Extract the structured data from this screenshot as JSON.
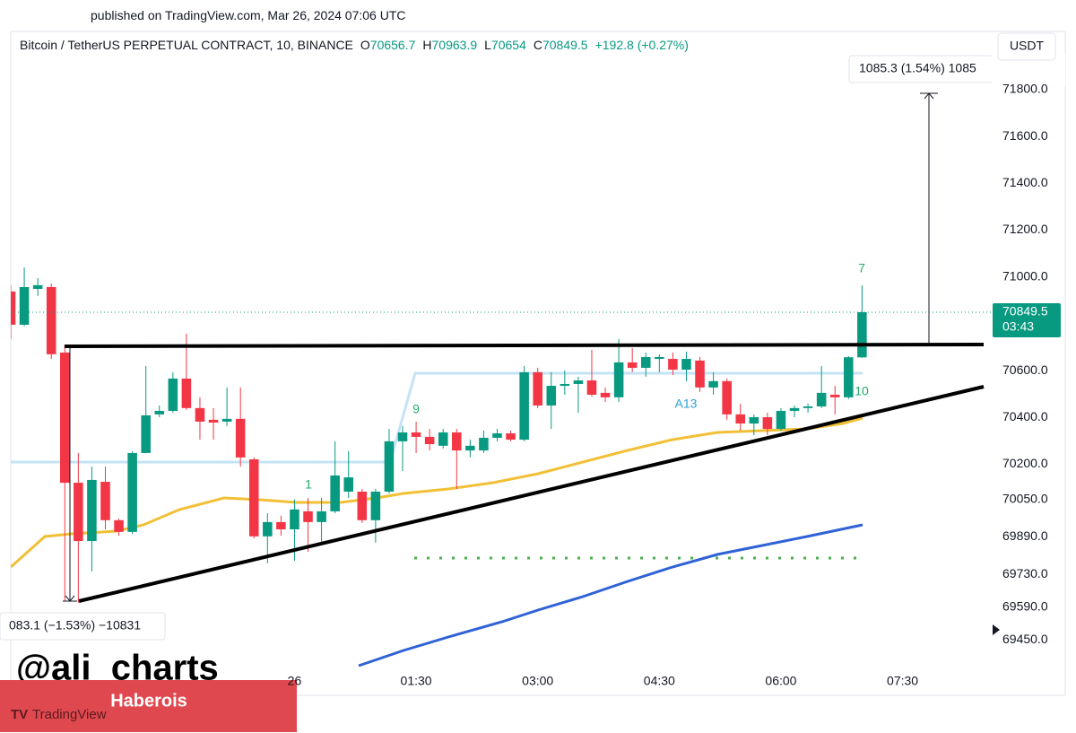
{
  "header": {
    "published": "published on TradingView.com, Mar 26, 2024 07:06 UTC",
    "symbol": "Bitcoin / TetherUS PERPETUAL CONTRACT, 10, BINANCE",
    "ohlc_labels": [
      "O",
      "H",
      "L",
      "C"
    ],
    "change": "+192.8 (+0.27%)"
  },
  "chart_data": {
    "type": "candlestick",
    "x": [
      -210,
      -200,
      -190,
      -180,
      -170,
      -160,
      -150,
      -140,
      -130,
      -120,
      -110,
      -100,
      -90,
      -80,
      -70,
      -60,
      -50,
      -40,
      -30,
      -20,
      -10,
      0,
      10,
      20,
      30,
      40,
      50,
      60,
      70,
      80,
      90,
      100,
      110,
      120,
      130,
      140,
      150,
      160,
      170,
      180,
      190,
      200,
      210,
      220,
      230,
      240,
      250,
      260,
      270,
      280,
      290,
      300,
      310,
      320,
      330,
      340,
      350,
      360,
      370,
      380,
      390,
      400,
      410,
      420
    ],
    "open": [
      70938,
      70796,
      70949,
      70957,
      70677,
      70121,
      69872,
      70125,
      69961,
      69911,
      70248,
      70413,
      70428,
      70566,
      70440,
      70390,
      70382,
      70394,
      70221,
      69892,
      69953,
      69922,
      69999,
      69953,
      69999,
      70083,
      70083,
      69961,
      70083,
      70298,
      70336,
      70317,
      70279,
      70336,
      70259,
      70259,
      70313,
      70332,
      70305,
      70593,
      70451,
      70535,
      70543,
      70558,
      70505,
      70486,
      70635,
      70612,
      70650,
      70650,
      70604,
      70643,
      70528,
      70555,
      70413,
      70374,
      70401,
      70351,
      70428,
      70440,
      70447,
      70497,
      70486,
      70656.7
    ],
    "high": [
      70965,
      71041,
      70995,
      70972,
      70708,
      70248,
      70190,
      70190,
      69968,
      70256,
      70620,
      70451,
      70593,
      70758,
      70486,
      70440,
      70528,
      70528,
      70229,
      69991,
      69980,
      70049,
      70056,
      70056,
      70298,
      70256,
      70095,
      70095,
      70351,
      70363,
      70382,
      70351,
      70351,
      70351,
      70305,
      70344,
      70351,
      70344,
      70620,
      70612,
      70593,
      70601,
      70574,
      70689,
      70528,
      70735,
      70696,
      70677,
      70670,
      70677,
      70681,
      70658,
      70593,
      70566,
      70459,
      70413,
      70420,
      70440,
      70451,
      70459,
      70620,
      70535,
      70662,
      70963.9
    ],
    "low": [
      70735,
      70790,
      70919,
      70650,
      69616,
      69608,
      69742,
      69922,
      69895,
      69903,
      70248,
      70401,
      70420,
      70432,
      70305,
      70305,
      70363,
      70190,
      69884,
      69777,
      69895,
      69788,
      69826,
      69865,
      69991,
      70056,
      69949,
      69865,
      70075,
      70171,
      70248,
      70259,
      70267,
      70095,
      70229,
      70248,
      70298,
      70298,
      70298,
      70440,
      70351,
      70497,
      70420,
      70489,
      70466,
      70466,
      70593,
      70574,
      70593,
      70581,
      70555,
      70509,
      70497,
      70390,
      70344,
      70324,
      70324,
      70344,
      70401,
      70420,
      70440,
      70413,
      70478,
      70654
    ],
    "close": [
      70796,
      70957,
      70965,
      70670,
      70121,
      69872,
      70133,
      69961,
      69911,
      70248,
      70409,
      70428,
      70566,
      70440,
      70382,
      70378,
      70394,
      70229,
      69892,
      69953,
      69922,
      70007,
      69953,
      69999,
      70152,
      70144,
      69961,
      70083,
      70298,
      70336,
      70317,
      70286,
      70336,
      70259,
      70279,
      70313,
      70332,
      70305,
      70593,
      70451,
      70535,
      70543,
      70558,
      70497,
      70486,
      70635,
      70612,
      70658,
      70658,
      70604,
      70650,
      70528,
      70555,
      70413,
      70374,
      70401,
      70351,
      70428,
      70440,
      70447,
      70505,
      70486,
      70657,
      70849.5
    ],
    "up_color": "#089981",
    "down_color": "#f23645",
    "xlim": [
      -210,
      512
    ],
    "xticks": [
      {
        "value": 0,
        "label": "26"
      },
      {
        "value": 90,
        "label": "01:30"
      },
      {
        "value": 180,
        "label": "03:00"
      },
      {
        "value": 270,
        "label": "04:30"
      },
      {
        "value": 360,
        "label": "06:00"
      },
      {
        "value": 450,
        "label": "07:30"
      }
    ],
    "ylim": [
      69213,
      72049
    ],
    "yticks": [
      {
        "value": 71800,
        "label": "71800.0"
      },
      {
        "value": 71600,
        "label": "71600.0"
      },
      {
        "value": 71400,
        "label": "71400.0"
      },
      {
        "value": 71200,
        "label": "71200.0"
      },
      {
        "value": 71000,
        "label": "71000.0"
      },
      {
        "value": 70600,
        "label": "70600.0"
      },
      {
        "value": 70400,
        "label": "70400.0"
      },
      {
        "value": 70200,
        "label": "70200.0"
      },
      {
        "value": 70050,
        "label": "70050.0"
      },
      {
        "value": 69890,
        "label": "69890.0"
      },
      {
        "value": 69730,
        "label": "69730.0"
      },
      {
        "value": 69590,
        "label": "69590.0"
      },
      {
        "value": 69450,
        "label": "69450.0"
      }
    ],
    "currency": "USDT",
    "countdown": "03:43",
    "measure_up": "1085.3 (1.54%) 1085",
    "measure_down": "083.1 (−1.53%) −10831",
    "signals": [
      "7",
      "10",
      "A13",
      "9",
      "1"
    ]
  },
  "watermark": {
    "handle": "@ali_charts",
    "banner": "Haberois",
    "logo": "TradingView"
  }
}
